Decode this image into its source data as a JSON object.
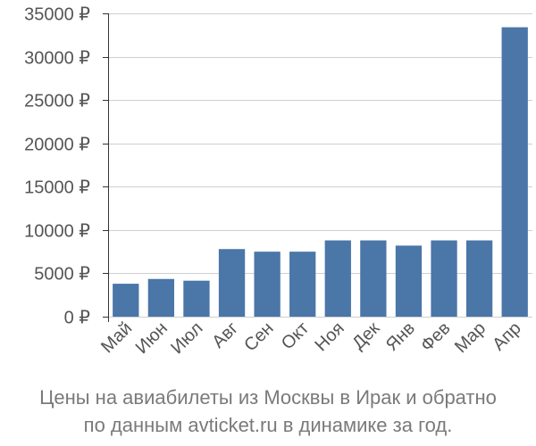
{
  "chart_data": {
    "type": "bar",
    "categories": [
      "Май",
      "Июн",
      "Июл",
      "Авг",
      "Сен",
      "Окт",
      "Ноя",
      "Дек",
      "Янв",
      "Фев",
      "Мар",
      "Апр"
    ],
    "values": [
      3800,
      4350,
      4150,
      7800,
      7500,
      7500,
      8800,
      8800,
      8200,
      8800,
      8800,
      33400
    ],
    "ylim": [
      0,
      35000
    ],
    "yticks": [
      0,
      5000,
      10000,
      15000,
      20000,
      25000,
      30000,
      35000
    ],
    "ytick_labels": [
      "0 ₽",
      "5000 ₽",
      "10000 ₽",
      "15000 ₽",
      "20000 ₽",
      "25000 ₽",
      "30000 ₽",
      "35000 ₽"
    ],
    "grid": true,
    "bar_color": "#4a76a8"
  },
  "caption": {
    "line1": "Цены на авиабилеты из Москвы в Ирак и обратно",
    "line2": "по данным avticket.ru в динамике за год."
  }
}
